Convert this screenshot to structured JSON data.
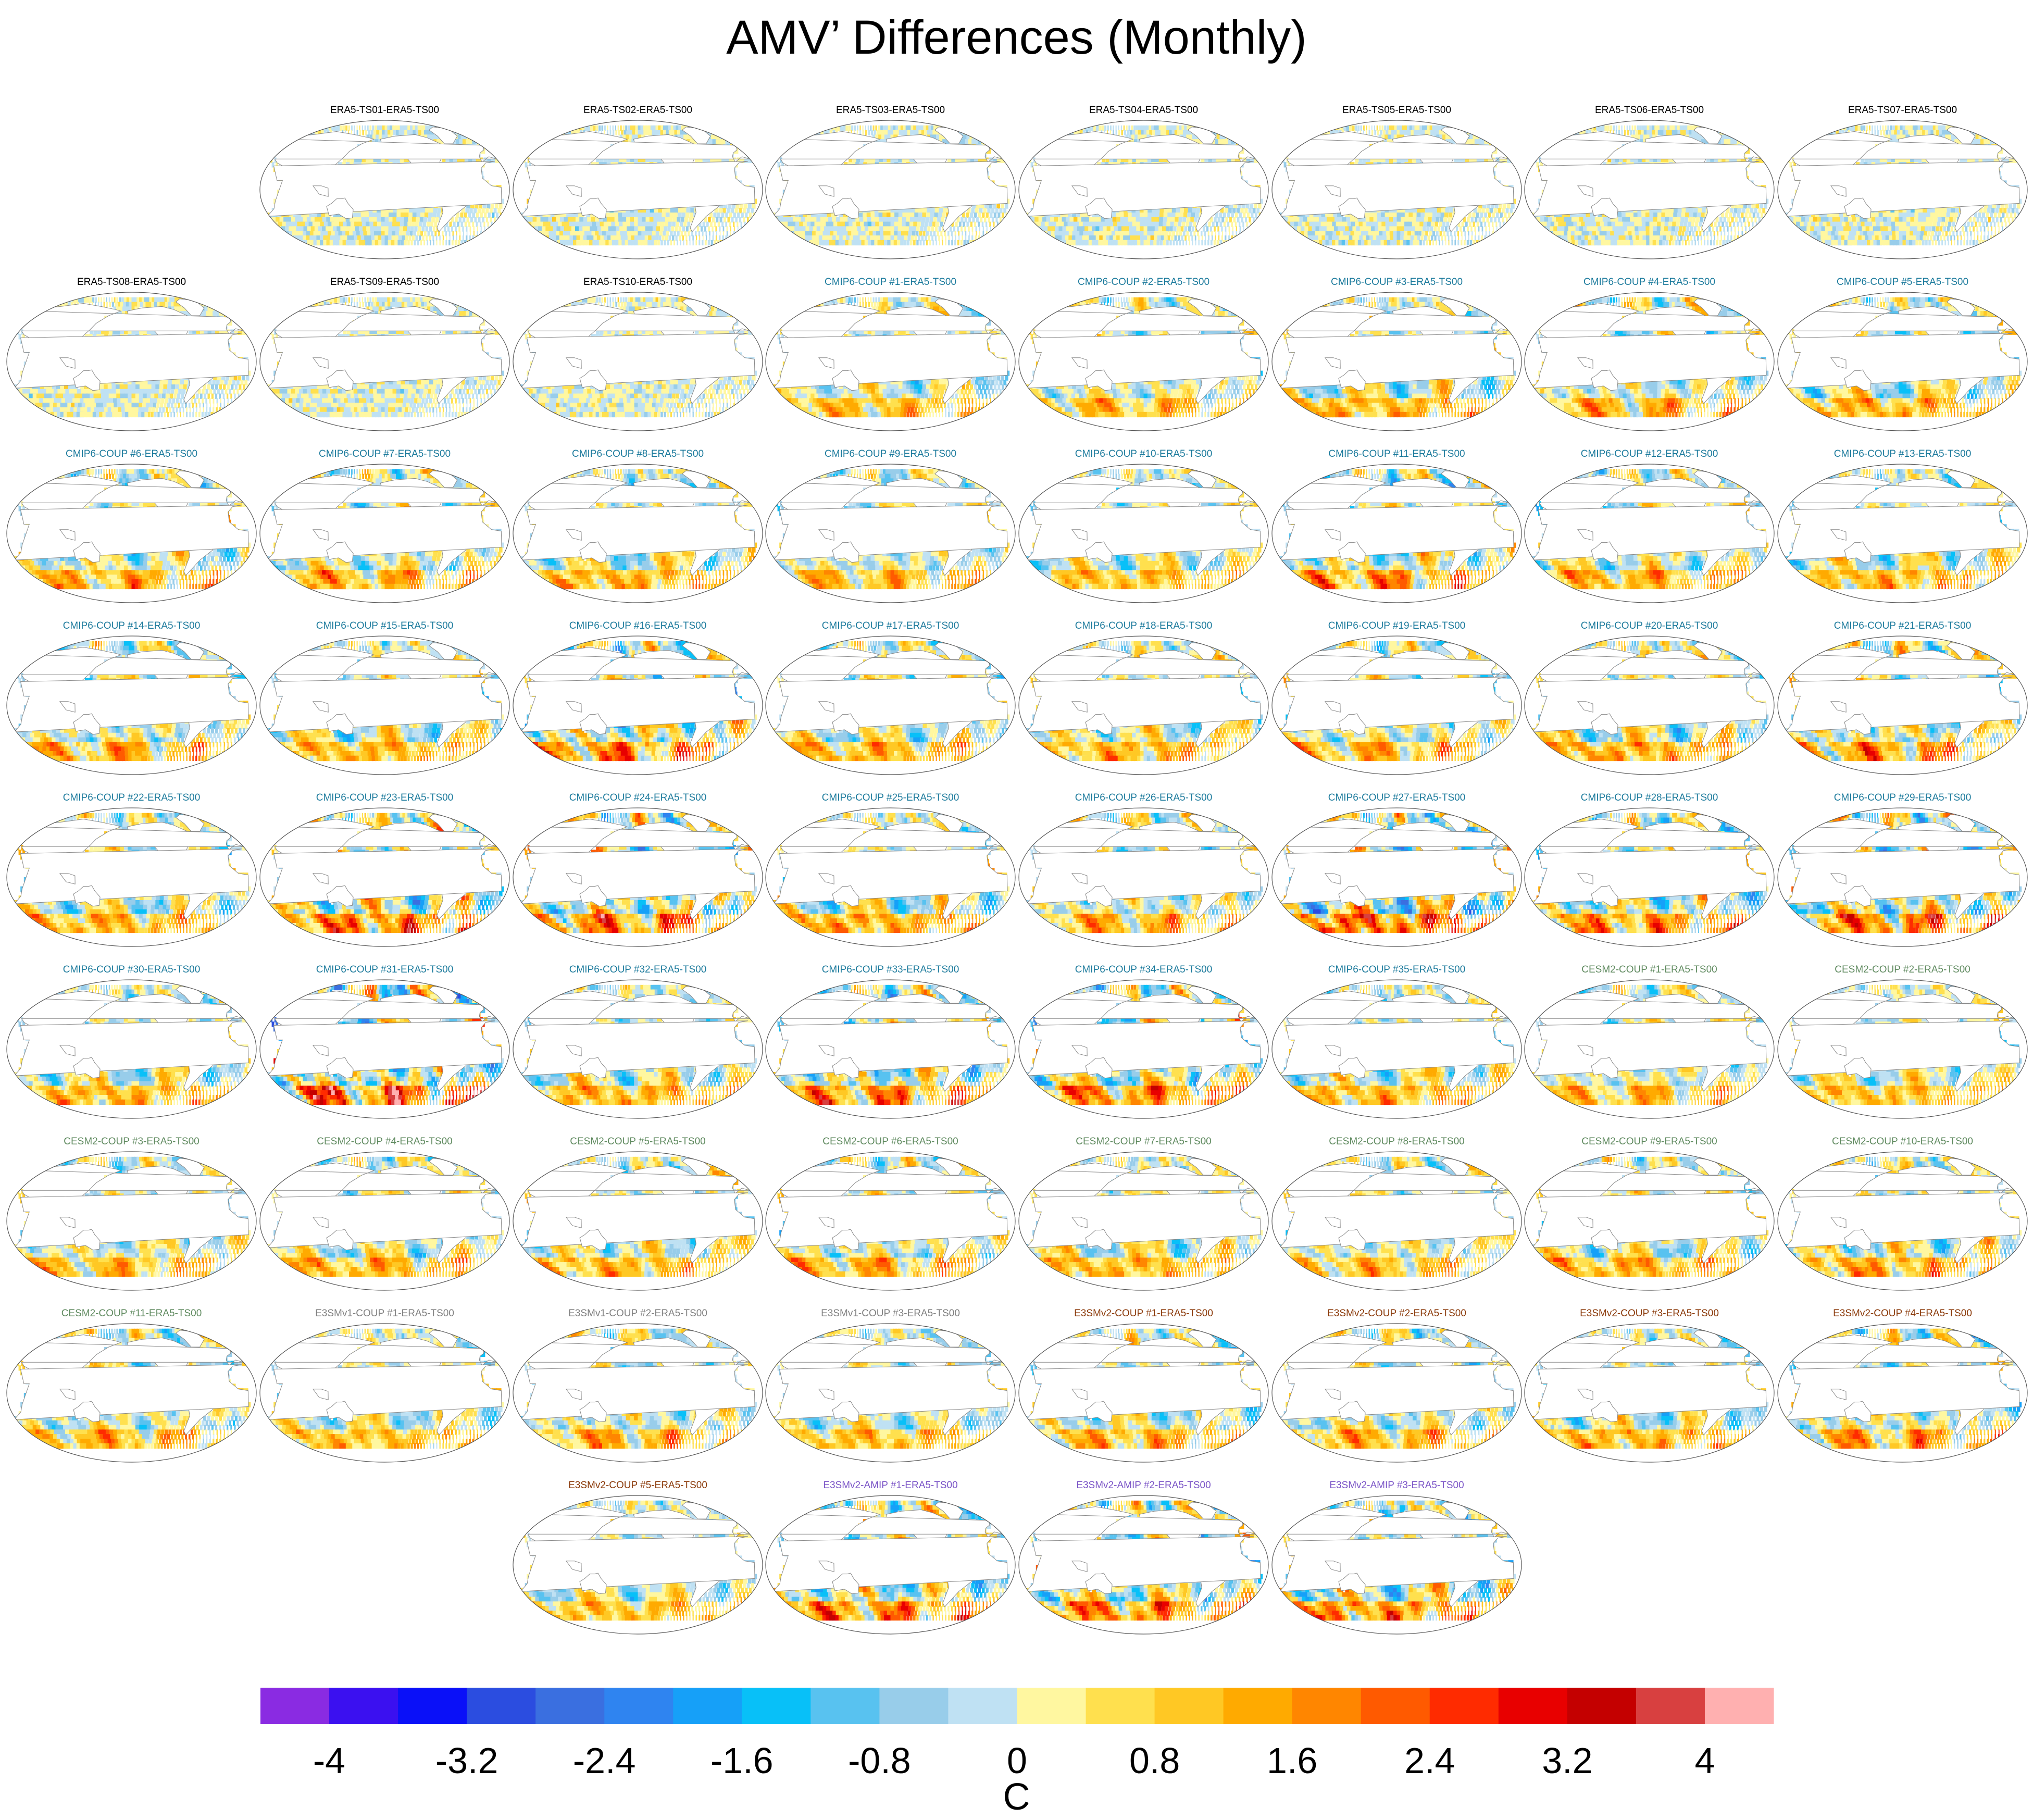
{
  "title": "AMV’ Differences (Monthly)",
  "chart_data": {
    "type": "heatmap",
    "title": "AMV’ Differences (Monthly)",
    "projection": "Robinson, Pacific-centered global maps",
    "units": "C",
    "colorbar": {
      "ticks": [
        "-4",
        "-3.2",
        "-2.4",
        "-1.6",
        "-0.8",
        "0",
        "0.8",
        "1.6",
        "2.4",
        "3.2",
        "4"
      ],
      "range": [
        -4.4,
        4.4
      ],
      "interval": 0.4,
      "colors": [
        "#8a2be2",
        "#3b10f0",
        "#0a10f8",
        "#2b4de0",
        "#3a6fe0",
        "#2f84f0",
        "#16a0f8",
        "#08c0f8",
        "#58c2f0",
        "#98cdea",
        "#bfe1f3",
        "#fff7a0",
        "#ffe04e",
        "#ffc824",
        "#ffaa00",
        "#ff8600",
        "#ff5a00",
        "#ff2b00",
        "#e80000",
        "#c40000",
        "#d84040",
        "#ffb0b0"
      ]
    },
    "group_colors": {
      "ERA5": "#000000",
      "CMIP6-COUP": "#1b7a9c",
      "CESM2-COUP": "#5f8a5f",
      "E3SMv1-COUP": "#808080",
      "E3SMv2-COUP": "#8b3a0a",
      "E3SMv2-AMIP": "#7b55c7"
    },
    "panels": [
      {
        "label": "ERA5-TS01-ERA5-TS00",
        "group": "ERA5",
        "amplitude": 0.55,
        "seed": 1
      },
      {
        "label": "ERA5-TS02-ERA5-TS00",
        "group": "ERA5",
        "amplitude": 0.55,
        "seed": 2
      },
      {
        "label": "ERA5-TS03-ERA5-TS00",
        "group": "ERA5",
        "amplitude": 0.55,
        "seed": 3
      },
      {
        "label": "ERA5-TS04-ERA5-TS00",
        "group": "ERA5",
        "amplitude": 0.55,
        "seed": 4
      },
      {
        "label": "ERA5-TS05-ERA5-TS00",
        "group": "ERA5",
        "amplitude": 0.55,
        "seed": 5
      },
      {
        "label": "ERA5-TS06-ERA5-TS00",
        "group": "ERA5",
        "amplitude": 0.55,
        "seed": 6
      },
      {
        "label": "ERA5-TS07-ERA5-TS00",
        "group": "ERA5",
        "amplitude": 0.55,
        "seed": 7
      },
      {
        "label": "ERA5-TS08-ERA5-TS00",
        "group": "ERA5",
        "amplitude": 0.55,
        "seed": 8
      },
      {
        "label": "ERA5-TS09-ERA5-TS00",
        "group": "ERA5",
        "amplitude": 0.55,
        "seed": 9
      },
      {
        "label": "ERA5-TS10-ERA5-TS00",
        "group": "ERA5",
        "amplitude": 0.55,
        "seed": 10
      },
      {
        "label": "CMIP6-COUP  #1-ERA5-TS00",
        "group": "CMIP6-COUP",
        "amplitude": 1.6,
        "seed": 11
      },
      {
        "label": "CMIP6-COUP  #2-ERA5-TS00",
        "group": "CMIP6-COUP",
        "amplitude": 1.6,
        "seed": 12
      },
      {
        "label": "CMIP6-COUP  #3-ERA5-TS00",
        "group": "CMIP6-COUP",
        "amplitude": 1.8,
        "seed": 13
      },
      {
        "label": "CMIP6-COUP  #4-ERA5-TS00",
        "group": "CMIP6-COUP",
        "amplitude": 1.8,
        "seed": 14
      },
      {
        "label": "CMIP6-COUP  #5-ERA5-TS00",
        "group": "CMIP6-COUP",
        "amplitude": 1.8,
        "seed": 15
      },
      {
        "label": "CMIP6-COUP  #6-ERA5-TS00",
        "group": "CMIP6-COUP",
        "amplitude": 1.8,
        "seed": 16
      },
      {
        "label": "CMIP6-COUP  #7-ERA5-TS00",
        "group": "CMIP6-COUP",
        "amplitude": 1.8,
        "seed": 17
      },
      {
        "label": "CMIP6-COUP  #8-ERA5-TS00",
        "group": "CMIP6-COUP",
        "amplitude": 1.8,
        "seed": 18
      },
      {
        "label": "CMIP6-COUP  #9-ERA5-TS00",
        "group": "CMIP6-COUP",
        "amplitude": 1.6,
        "seed": 19
      },
      {
        "label": "CMIP6-COUP  #10-ERA5-TS00",
        "group": "CMIP6-COUP",
        "amplitude": 1.6,
        "seed": 20
      },
      {
        "label": "CMIP6-COUP  #11-ERA5-TS00",
        "group": "CMIP6-COUP",
        "amplitude": 2.2,
        "seed": 21
      },
      {
        "label": "CMIP6-COUP  #12-ERA5-TS00",
        "group": "CMIP6-COUP",
        "amplitude": 1.8,
        "seed": 22
      },
      {
        "label": "CMIP6-COUP  #13-ERA5-TS00",
        "group": "CMIP6-COUP",
        "amplitude": 1.8,
        "seed": 23
      },
      {
        "label": "CMIP6-COUP  #14-ERA5-TS00",
        "group": "CMIP6-COUP",
        "amplitude": 1.8,
        "seed": 24
      },
      {
        "label": "CMIP6-COUP  #15-ERA5-TS00",
        "group": "CMIP6-COUP",
        "amplitude": 1.8,
        "seed": 25
      },
      {
        "label": "CMIP6-COUP  #16-ERA5-TS00",
        "group": "CMIP6-COUP",
        "amplitude": 2.4,
        "seed": 26
      },
      {
        "label": "CMIP6-COUP  #17-ERA5-TS00",
        "group": "CMIP6-COUP",
        "amplitude": 1.8,
        "seed": 27
      },
      {
        "label": "CMIP6-COUP  #18-ERA5-TS00",
        "group": "CMIP6-COUP",
        "amplitude": 1.8,
        "seed": 28
      },
      {
        "label": "CMIP6-COUP  #19-ERA5-TS00",
        "group": "CMIP6-COUP",
        "amplitude": 1.8,
        "seed": 29
      },
      {
        "label": "CMIP6-COUP  #20-ERA5-TS00",
        "group": "CMIP6-COUP",
        "amplitude": 2.0,
        "seed": 30
      },
      {
        "label": "CMIP6-COUP  #21-ERA5-TS00",
        "group": "CMIP6-COUP",
        "amplitude": 2.2,
        "seed": 31
      },
      {
        "label": "CMIP6-COUP  #22-ERA5-TS00",
        "group": "CMIP6-COUP",
        "amplitude": 1.8,
        "seed": 32
      },
      {
        "label": "CMIP6-COUP  #23-ERA5-TS00",
        "group": "CMIP6-COUP",
        "amplitude": 2.6,
        "seed": 33
      },
      {
        "label": "CMIP6-COUP  #24-ERA5-TS00",
        "group": "CMIP6-COUP",
        "amplitude": 2.6,
        "seed": 34
      },
      {
        "label": "CMIP6-COUP  #25-ERA5-TS00",
        "group": "CMIP6-COUP",
        "amplitude": 2.0,
        "seed": 35
      },
      {
        "label": "CMIP6-COUP  #26-ERA5-TS00",
        "group": "CMIP6-COUP",
        "amplitude": 1.8,
        "seed": 36
      },
      {
        "label": "CMIP6-COUP  #27-ERA5-TS00",
        "group": "CMIP6-COUP",
        "amplitude": 3.0,
        "seed": 37
      },
      {
        "label": "CMIP6-COUP  #28-ERA5-TS00",
        "group": "CMIP6-COUP",
        "amplitude": 2.2,
        "seed": 38
      },
      {
        "label": "CMIP6-COUP  #29-ERA5-TS00",
        "group": "CMIP6-COUP",
        "amplitude": 2.6,
        "seed": 39
      },
      {
        "label": "CMIP6-COUP  #30-ERA5-TS00",
        "group": "CMIP6-COUP",
        "amplitude": 1.8,
        "seed": 40
      },
      {
        "label": "CMIP6-COUP  #31-ERA5-TS00",
        "group": "CMIP6-COUP",
        "amplitude": 3.0,
        "seed": 41
      },
      {
        "label": "CMIP6-COUP  #32-ERA5-TS00",
        "group": "CMIP6-COUP",
        "amplitude": 1.8,
        "seed": 42
      },
      {
        "label": "CMIP6-COUP  #33-ERA5-TS00",
        "group": "CMIP6-COUP",
        "amplitude": 2.4,
        "seed": 43
      },
      {
        "label": "CMIP6-COUP  #34-ERA5-TS00",
        "group": "CMIP6-COUP",
        "amplitude": 2.4,
        "seed": 44
      },
      {
        "label": "CMIP6-COUP  #35-ERA5-TS00",
        "group": "CMIP6-COUP",
        "amplitude": 1.8,
        "seed": 45
      },
      {
        "label": "CESM2-COUP  #1-ERA5-TS00",
        "group": "CESM2-COUP",
        "amplitude": 1.6,
        "seed": 46
      },
      {
        "label": "CESM2-COUP  #2-ERA5-TS00",
        "group": "CESM2-COUP",
        "amplitude": 1.6,
        "seed": 47
      },
      {
        "label": "CESM2-COUP  #3-ERA5-TS00",
        "group": "CESM2-COUP",
        "amplitude": 1.6,
        "seed": 48
      },
      {
        "label": "CESM2-COUP  #4-ERA5-TS00",
        "group": "CESM2-COUP",
        "amplitude": 1.8,
        "seed": 49
      },
      {
        "label": "CESM2-COUP  #5-ERA5-TS00",
        "group": "CESM2-COUP",
        "amplitude": 1.8,
        "seed": 50
      },
      {
        "label": "CESM2-COUP  #6-ERA5-TS00",
        "group": "CESM2-COUP",
        "amplitude": 1.8,
        "seed": 51
      },
      {
        "label": "CESM2-COUP  #7-ERA5-TS00",
        "group": "CESM2-COUP",
        "amplitude": 1.8,
        "seed": 52
      },
      {
        "label": "CESM2-COUP  #8-ERA5-TS00",
        "group": "CESM2-COUP",
        "amplitude": 1.6,
        "seed": 53
      },
      {
        "label": "CESM2-COUP  #9-ERA5-TS00",
        "group": "CESM2-COUP",
        "amplitude": 1.8,
        "seed": 54
      },
      {
        "label": "CESM2-COUP  #10-ERA5-TS00",
        "group": "CESM2-COUP",
        "amplitude": 2.0,
        "seed": 55
      },
      {
        "label": "CESM2-COUP  #11-ERA5-TS00",
        "group": "CESM2-COUP",
        "amplitude": 1.8,
        "seed": 56
      },
      {
        "label": "E3SMv1-COUP  #1-ERA5-TS00",
        "group": "E3SMv1-COUP",
        "amplitude": 1.6,
        "seed": 57
      },
      {
        "label": "E3SMv1-COUP  #2-ERA5-TS00",
        "group": "E3SMv1-COUP",
        "amplitude": 1.8,
        "seed": 58
      },
      {
        "label": "E3SMv1-COUP  #3-ERA5-TS00",
        "group": "E3SMv1-COUP",
        "amplitude": 1.6,
        "seed": 59
      },
      {
        "label": "E3SMv2-COUP  #1-ERA5-TS00",
        "group": "E3SMv2-COUP",
        "amplitude": 1.8,
        "seed": 60
      },
      {
        "label": "E3SMv2-COUP  #2-ERA5-TS00",
        "group": "E3SMv2-COUP",
        "amplitude": 1.8,
        "seed": 61
      },
      {
        "label": "E3SMv2-COUP  #3-ERA5-TS00",
        "group": "E3SMv2-COUP",
        "amplitude": 1.8,
        "seed": 62
      },
      {
        "label": "E3SMv2-COUP  #4-ERA5-TS00",
        "group": "E3SMv2-COUP",
        "amplitude": 2.0,
        "seed": 63
      },
      {
        "label": "E3SMv2-COUP  #5-ERA5-TS00",
        "group": "E3SMv2-COUP",
        "amplitude": 1.6,
        "seed": 64
      },
      {
        "label": "E3SMv2-AMIP  #1-ERA5-TS00",
        "group": "E3SMv2-AMIP",
        "amplitude": 2.4,
        "seed": 65
      },
      {
        "label": "E3SMv2-AMIP  #2-ERA5-TS00",
        "group": "E3SMv2-AMIP",
        "amplitude": 2.4,
        "seed": 66
      },
      {
        "label": "E3SMv2-AMIP  #3-ERA5-TS00",
        "group": "E3SMv2-AMIP",
        "amplitude": 2.4,
        "seed": 67
      }
    ]
  }
}
